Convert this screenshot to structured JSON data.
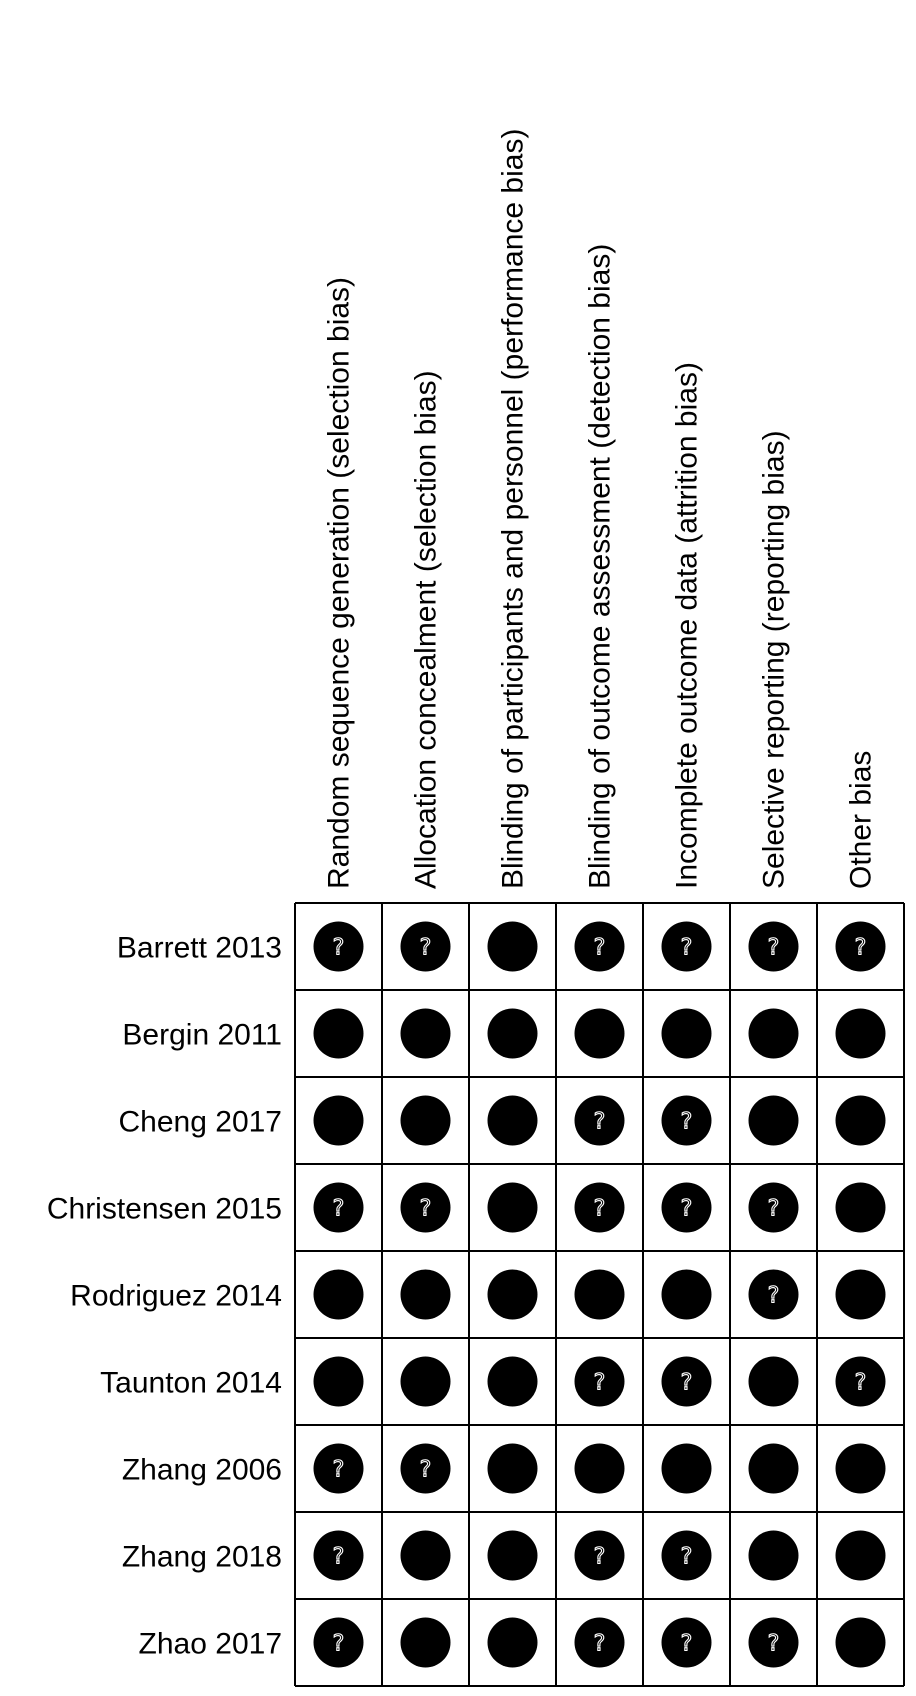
{
  "chart_data": {
    "type": "table",
    "columns": [
      "Random sequence generation (selection bias)",
      "Allocation concealment (selection bias)",
      "Blinding of participants and personnel (performance bias)",
      "Blinding of outcome assessment (detection bias)",
      "Incomplete outcome data (attrition bias)",
      "Selective reporting (reporting bias)",
      "Other bias"
    ],
    "rows": [
      "Barrett 2013",
      "Bergin 2011",
      "Cheng 2017",
      "Christensen 2015",
      "Rodriguez 2014",
      "Taunton 2014",
      "Zhang 2006",
      "Zhang 2018",
      "Zhao 2017"
    ],
    "symbol_text": "?",
    "values": [
      [
        "unclear",
        "unclear",
        "solid",
        "unclear",
        "unclear",
        "unclear",
        "unclear"
      ],
      [
        "solid",
        "solid",
        "solid",
        "solid",
        "solid",
        "solid",
        "solid"
      ],
      [
        "solid",
        "solid",
        "solid",
        "unclear",
        "unclear",
        "solid",
        "solid"
      ],
      [
        "unclear",
        "unclear",
        "solid",
        "unclear",
        "unclear",
        "unclear",
        "solid"
      ],
      [
        "solid",
        "solid",
        "solid",
        "solid",
        "solid",
        "unclear",
        "solid"
      ],
      [
        "solid",
        "solid",
        "solid",
        "unclear",
        "unclear",
        "solid",
        "unclear"
      ],
      [
        "unclear",
        "unclear",
        "solid",
        "solid",
        "solid",
        "solid",
        "solid"
      ],
      [
        "unclear",
        "solid",
        "solid",
        "unclear",
        "unclear",
        "solid",
        "solid"
      ],
      [
        "unclear",
        "solid",
        "solid",
        "unclear",
        "unclear",
        "unclear",
        "solid"
      ]
    ],
    "colors": {
      "dot": "#000000",
      "grid": "#000000",
      "background": "#ffffff"
    }
  }
}
